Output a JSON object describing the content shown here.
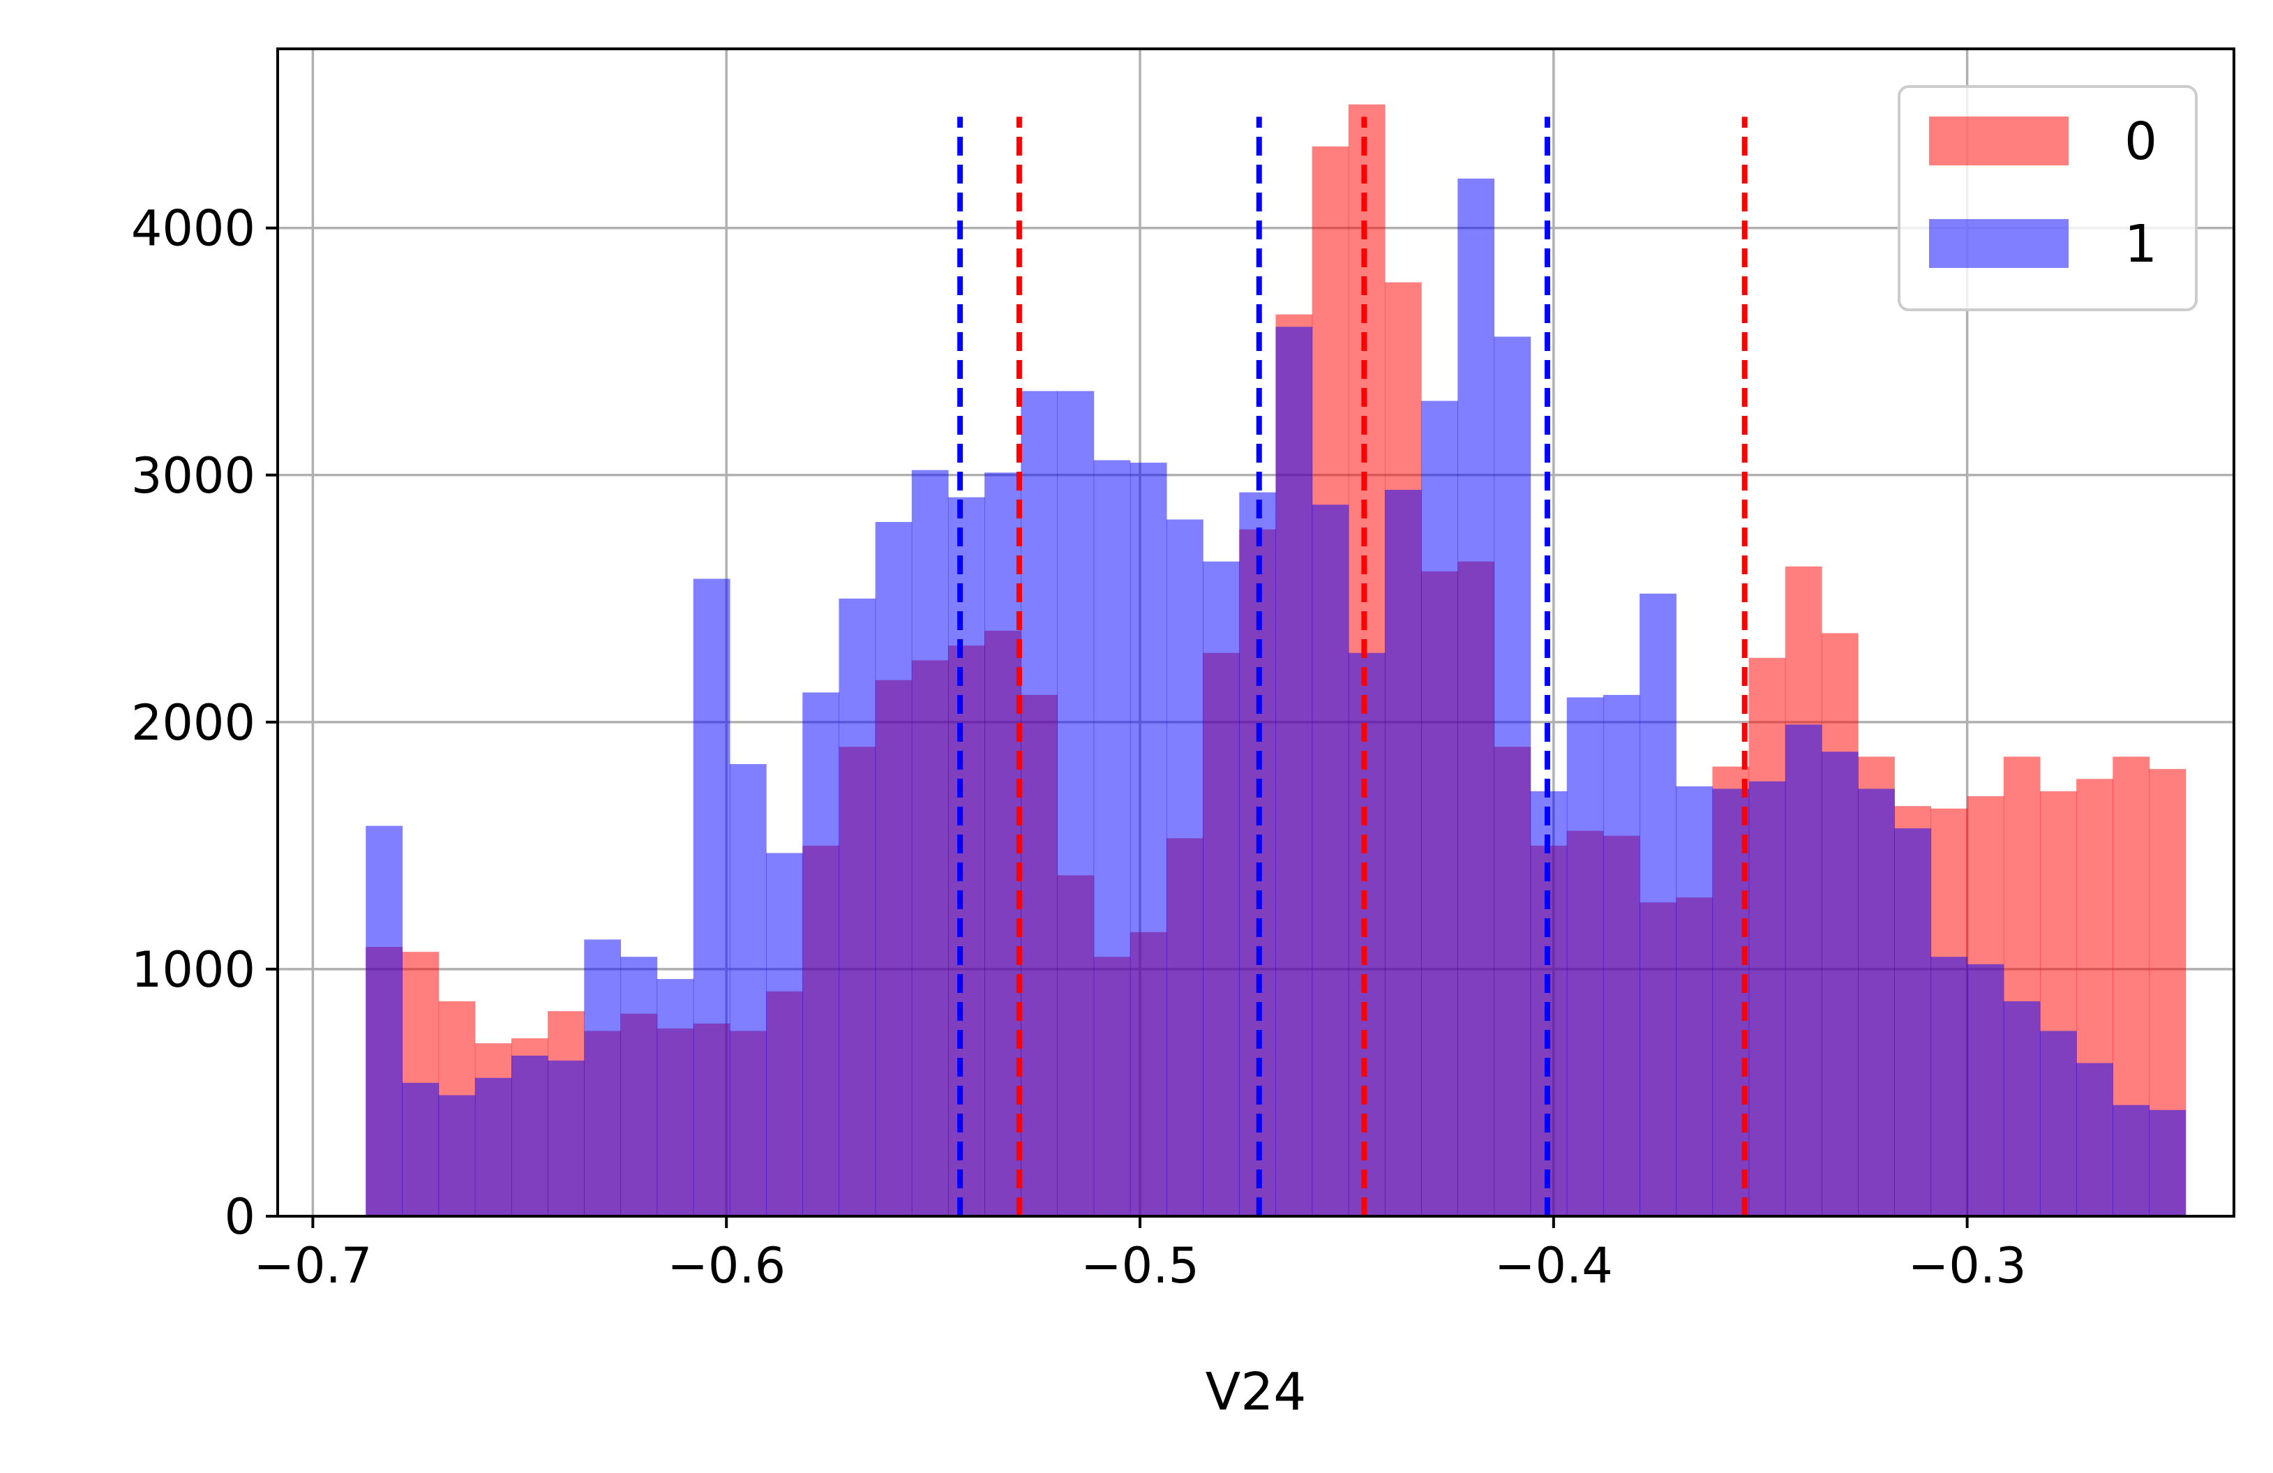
{
  "chart_data": {
    "type": "histogram",
    "title": "",
    "xlabel": "V24",
    "ylabel": "",
    "xlim": [
      -0.7085,
      -0.2355
    ],
    "ylim": [
      0,
      4725
    ],
    "grid": true,
    "legend_position": "top-right",
    "xticks": [
      -0.7,
      -0.6,
      -0.5,
      -0.4,
      -0.3
    ],
    "xtick_labels": [
      "−0.7",
      "−0.6",
      "−0.5",
      "−0.4",
      "−0.3"
    ],
    "yticks": [
      0,
      1000,
      2000,
      3000,
      4000
    ],
    "ytick_labels": [
      "0",
      "1000",
      "2000",
      "3000",
      "4000"
    ],
    "bin_edges": [
      -0.6872,
      -0.6784,
      -0.6696,
      -0.6608,
      -0.652,
      -0.6432,
      -0.6344,
      -0.6256,
      -0.6168,
      -0.608,
      -0.5992,
      -0.5904,
      -0.5816,
      -0.5728,
      -0.564,
      -0.5552,
      -0.5464,
      -0.5376,
      -0.5288,
      -0.52,
      -0.5112,
      -0.5024,
      -0.4936,
      -0.4848,
      -0.476,
      -0.4672,
      -0.4584,
      -0.4496,
      -0.4408,
      -0.432,
      -0.4232,
      -0.4144,
      -0.4056,
      -0.3968,
      -0.388,
      -0.3792,
      -0.3704,
      -0.3616,
      -0.3528,
      -0.344,
      -0.3352,
      -0.3264,
      -0.3176,
      -0.3088,
      -0.3,
      -0.2912,
      -0.2824,
      -0.2736,
      -0.2648,
      -0.256,
      -0.2472
    ],
    "series": [
      {
        "name": "0",
        "color": "#ff0000",
        "opacity": 0.5,
        "counts": [
          1090,
          1070,
          870,
          700,
          720,
          830,
          750,
          820,
          760,
          780,
          750,
          910,
          1500,
          1900,
          2170,
          2250,
          2310,
          2370,
          2110,
          1380,
          1050,
          1150,
          1530,
          2280,
          2780,
          3650,
          4330,
          4500,
          3780,
          2610,
          2650,
          1900,
          1500,
          1560,
          1540,
          1270,
          1290,
          1820,
          2260,
          2630,
          2360,
          1860,
          1660,
          1650,
          1700,
          1860,
          1720,
          1770,
          1860,
          1810
        ],
        "markers": [
          -0.5292,
          -0.4458,
          -0.3538
        ]
      },
      {
        "name": "1",
        "color": "#0000ff",
        "opacity": 0.5,
        "counts": [
          1580,
          540,
          490,
          560,
          650,
          630,
          1120,
          1050,
          960,
          2580,
          1830,
          1470,
          2120,
          2500,
          2810,
          3020,
          2910,
          3010,
          3340,
          3340,
          3060,
          3050,
          2820,
          2650,
          2930,
          3600,
          2880,
          2280,
          2940,
          3300,
          4200,
          3560,
          1720,
          2100,
          2110,
          2520,
          1740,
          1730,
          1760,
          1990,
          1880,
          1730,
          1570,
          1050,
          1020,
          870,
          750,
          620,
          450,
          430
        ],
        "markers": [
          -0.5435,
          -0.4712,
          -0.4015
        ]
      }
    ]
  }
}
